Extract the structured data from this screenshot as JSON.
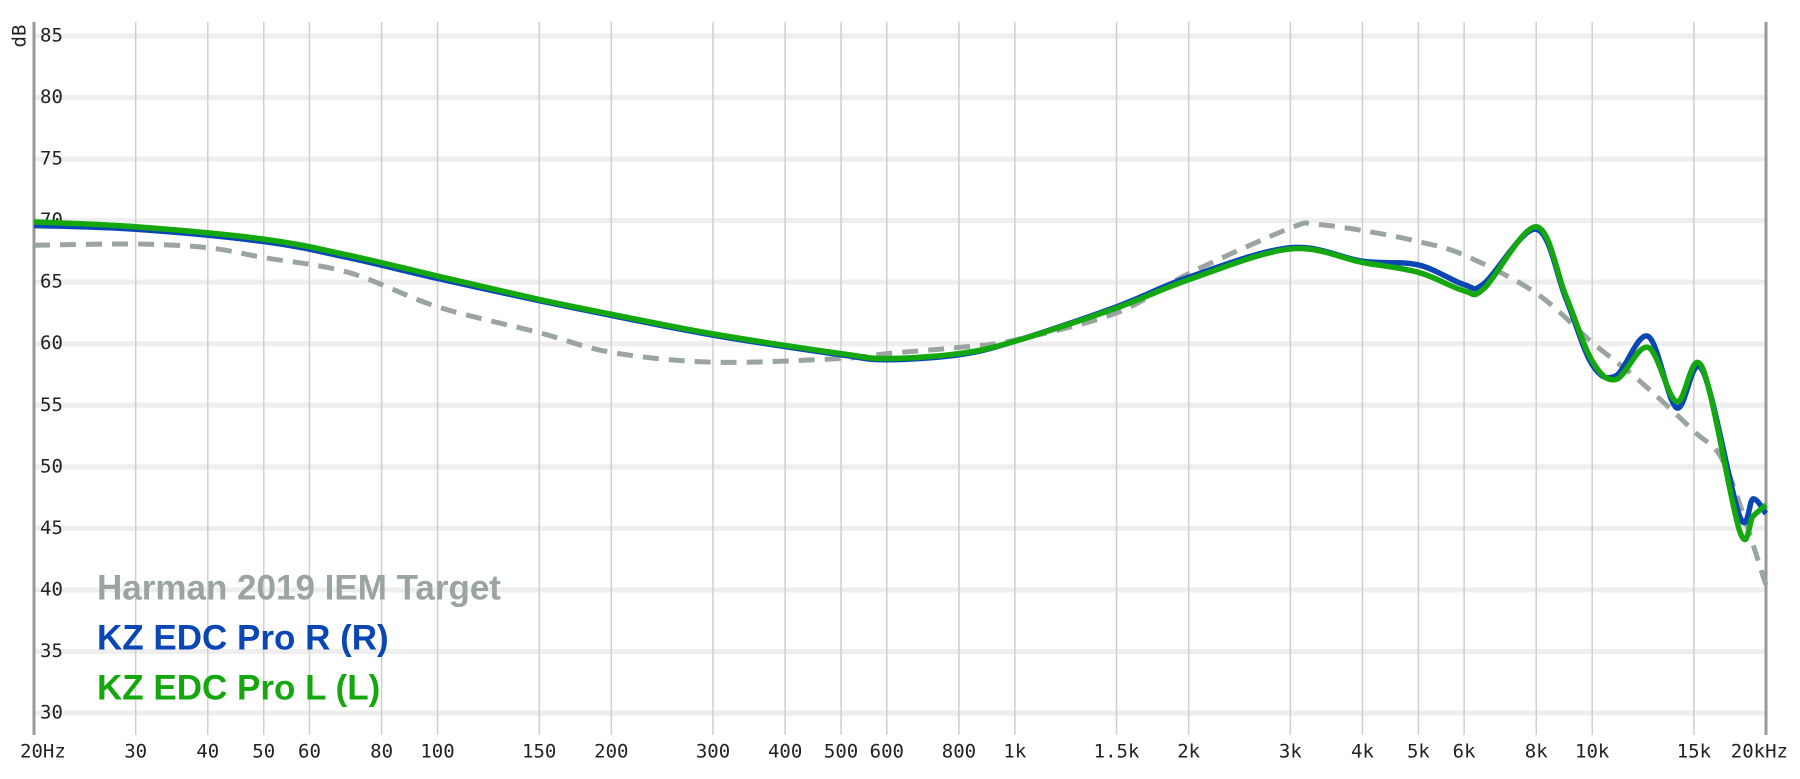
{
  "chart_data": {
    "type": "line",
    "log_x": true,
    "grid": true,
    "y_label": "dB",
    "xlim": [
      20,
      20000
    ],
    "ylim": [
      30,
      85
    ],
    "yticks": [
      30,
      35,
      40,
      45,
      50,
      55,
      60,
      65,
      70,
      75,
      80,
      85
    ],
    "xticks": [
      {
        "value": 20,
        "label": "20Hz"
      },
      30,
      40,
      50,
      60,
      80,
      100,
      150,
      200,
      300,
      400,
      500,
      600,
      800,
      {
        "value": 1000,
        "label": "1k"
      },
      {
        "value": 1500,
        "label": "1.5k"
      },
      {
        "value": 2000,
        "label": "2k"
      },
      {
        "value": 3000,
        "label": "3k"
      },
      {
        "value": 4000,
        "label": "4k"
      },
      {
        "value": 5000,
        "label": "5k"
      },
      {
        "value": 6000,
        "label": "6k"
      },
      {
        "value": 8000,
        "label": "8k"
      },
      {
        "value": 10000,
        "label": "10k"
      },
      {
        "value": 15000,
        "label": "15k"
      },
      {
        "value": 20000,
        "label": "20kHz"
      }
    ],
    "series": [
      {
        "name": "Harman 2019 IEM Target",
        "color": "#9aa4a1",
        "dashed": true,
        "x": [
          20,
          30,
          40,
          50,
          70,
          100,
          150,
          200,
          300,
          500,
          600,
          800,
          1000,
          1500,
          2000,
          3000,
          3300,
          4000,
          5000,
          6000,
          8000,
          10000,
          12000,
          15000,
          17000,
          20000
        ],
        "values": [
          68.0,
          68.1,
          67.8,
          67.0,
          65.8,
          63.0,
          60.9,
          59.3,
          58.5,
          58.8,
          59.2,
          59.7,
          60.3,
          62.5,
          65.7,
          69.4,
          69.7,
          69.2,
          68.3,
          67.2,
          64.1,
          60.1,
          57.1,
          52.9,
          50.1,
          40.4
        ]
      },
      {
        "name": "KZ EDC Pro R (R)",
        "color": "#0a47b5",
        "x": [
          20,
          30,
          50,
          70,
          100,
          150,
          200,
          300,
          500,
          600,
          800,
          1000,
          1500,
          2000,
          3000,
          4000,
          5000,
          6000,
          6500,
          8000,
          9000,
          10000,
          11000,
          12500,
          14000,
          15500,
          18000,
          19000,
          20000
        ],
        "values": [
          69.6,
          69.3,
          68.3,
          67.0,
          65.3,
          63.5,
          62.3,
          60.7,
          59.1,
          58.7,
          59.1,
          60.2,
          63.0,
          65.4,
          67.8,
          66.7,
          66.4,
          64.8,
          64.9,
          69.3,
          63.7,
          58.3,
          57.4,
          60.6,
          54.8,
          57.9,
          46.0,
          47.4,
          46.2
        ]
      },
      {
        "name": "KZ EDC Pro L (L)",
        "color": "#14a80e",
        "x": [
          20,
          30,
          50,
          70,
          100,
          150,
          200,
          300,
          500,
          600,
          800,
          1000,
          1500,
          2000,
          3000,
          4000,
          5000,
          6000,
          6500,
          8000,
          9000,
          10000,
          11000,
          12500,
          14000,
          15500,
          18000,
          19000,
          20000
        ],
        "values": [
          69.9,
          69.5,
          68.5,
          67.2,
          65.5,
          63.6,
          62.4,
          60.8,
          59.2,
          58.8,
          59.2,
          60.2,
          62.9,
          65.2,
          67.7,
          66.6,
          65.8,
          64.3,
          64.5,
          69.5,
          63.9,
          58.6,
          57.1,
          59.7,
          55.3,
          58.1,
          44.8,
          46.0,
          46.9
        ]
      }
    ]
  }
}
